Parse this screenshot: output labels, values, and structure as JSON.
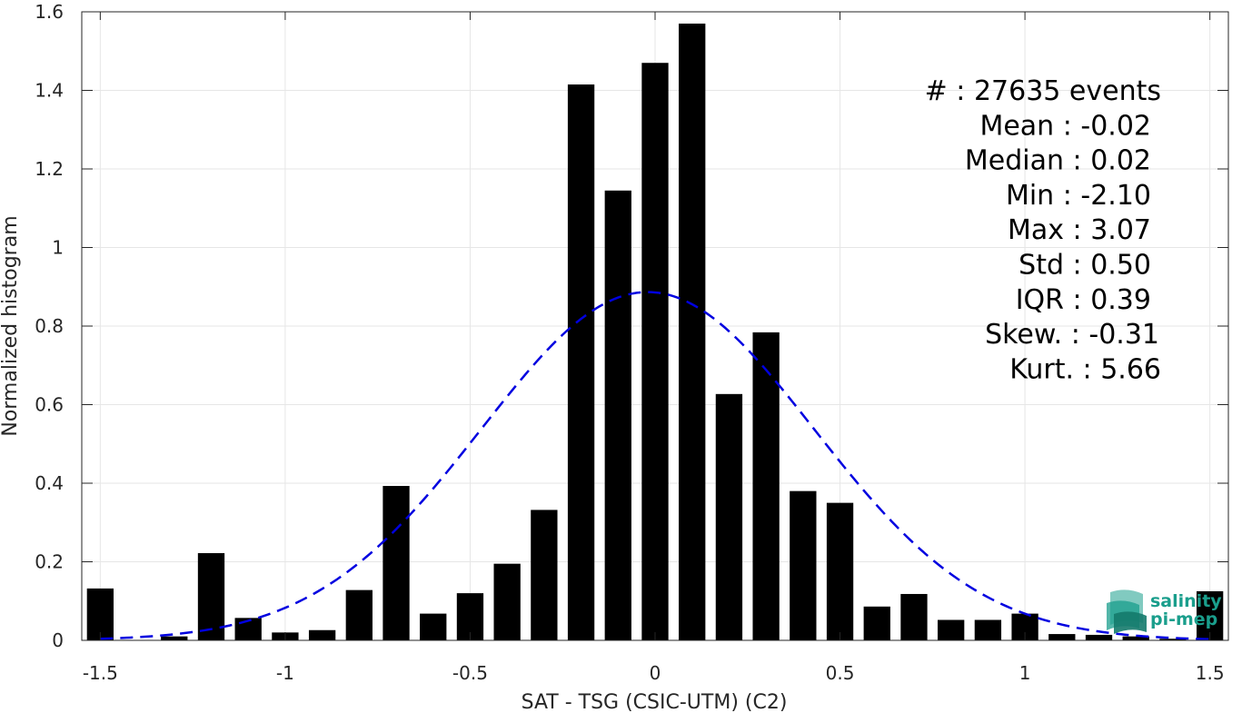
{
  "chart_data": {
    "type": "bar",
    "xlabel": "SAT - TSG (CSIC-UTM) (C2)",
    "ylabel": "Normalized histogram",
    "xlim": [
      -1.55,
      1.55
    ],
    "ylim": [
      0,
      1.6
    ],
    "xticks": [
      -1.5,
      -1,
      -0.5,
      0,
      0.5,
      1,
      1.5
    ],
    "xtick_labels": [
      "-1.5",
      "-1",
      "-0.5",
      "0",
      "0.5",
      "1",
      "1.5"
    ],
    "yticks": [
      0,
      0.2,
      0.4,
      0.6,
      0.8,
      1,
      1.2,
      1.4,
      1.6
    ],
    "ytick_labels": [
      "0",
      "0.2",
      "0.4",
      "0.6",
      "0.8",
      "1",
      "1.2",
      "1.4",
      "1.6"
    ],
    "grid": true,
    "bin_width": 0.1,
    "bar_color": "#000000",
    "bins": [
      {
        "x": -1.5,
        "y": 0.132
      },
      {
        "x": -1.4,
        "y": 0.0
      },
      {
        "x": -1.3,
        "y": 0.01
      },
      {
        "x": -1.2,
        "y": 0.222
      },
      {
        "x": -1.1,
        "y": 0.057
      },
      {
        "x": -1.0,
        "y": 0.02
      },
      {
        "x": -0.9,
        "y": 0.026
      },
      {
        "x": -0.8,
        "y": 0.128
      },
      {
        "x": -0.7,
        "y": 0.393
      },
      {
        "x": -0.6,
        "y": 0.068
      },
      {
        "x": -0.5,
        "y": 0.12
      },
      {
        "x": -0.4,
        "y": 0.195
      },
      {
        "x": -0.3,
        "y": 0.332
      },
      {
        "x": -0.2,
        "y": 1.415
      },
      {
        "x": -0.1,
        "y": 1.145
      },
      {
        "x": 0.0,
        "y": 1.47
      },
      {
        "x": 0.1,
        "y": 1.57
      },
      {
        "x": 0.2,
        "y": 0.627
      },
      {
        "x": 0.3,
        "y": 0.784
      },
      {
        "x": 0.4,
        "y": 0.38
      },
      {
        "x": 0.5,
        "y": 0.35
      },
      {
        "x": 0.6,
        "y": 0.086
      },
      {
        "x": 0.7,
        "y": 0.118
      },
      {
        "x": 0.8,
        "y": 0.052
      },
      {
        "x": 0.9,
        "y": 0.052
      },
      {
        "x": 1.0,
        "y": 0.068
      },
      {
        "x": 1.1,
        "y": 0.016
      },
      {
        "x": 1.2,
        "y": 0.014
      },
      {
        "x": 1.3,
        "y": 0.01
      },
      {
        "x": 1.4,
        "y": 0.004
      },
      {
        "x": 1.5,
        "y": 0.125
      }
    ],
    "fit_curve": {
      "type": "gaussian",
      "mean": -0.02,
      "std": 0.45,
      "color": "#0000e0",
      "style": "dashed"
    },
    "stats": [
      "#  : 27635 events",
      "Mean : -0.02",
      "Median : 0.02",
      "Min : -2.10",
      "Max : 3.07",
      "Std : 0.50",
      "IQR : 0.39",
      "Skew. : -0.31",
      "Kurt. : 5.66"
    ]
  },
  "logo": {
    "line1": "salinity",
    "line2": "pi-mep",
    "color": "#1a9e8c"
  }
}
